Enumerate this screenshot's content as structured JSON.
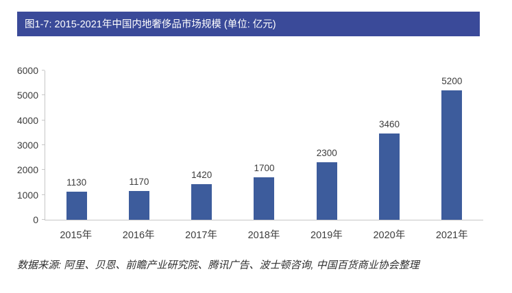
{
  "header": {
    "title": "图1-7: 2015-2021年中国内地奢侈品市场规模 (单位: 亿元)"
  },
  "footer": {
    "source": "数据来源: 阿里、贝恩、前瞻产业研究院、腾讯广告、波士顿咨询, 中国百货商业协会整理"
  },
  "colors": {
    "header_bg": "#3a4a99",
    "bar": "#3d5c9c",
    "axis": "#c6c6c6",
    "text": "#3c3c3c"
  },
  "chart_data": {
    "type": "bar",
    "title": "图1-7: 2015-2021年中国内地奢侈品市场规模 (单位: 亿元)",
    "categories": [
      "2015年",
      "2016年",
      "2017年",
      "2018年",
      "2019年",
      "2020年",
      "2021年"
    ],
    "values": [
      1130,
      1170,
      1420,
      1700,
      2300,
      3460,
      5200
    ],
    "xlabel": "",
    "ylabel": "",
    "ylim": [
      0,
      6000
    ],
    "yticks": [
      0,
      1000,
      2000,
      3000,
      4000,
      5000,
      6000
    ],
    "grid": false,
    "legend": "none",
    "data_labels": true
  }
}
